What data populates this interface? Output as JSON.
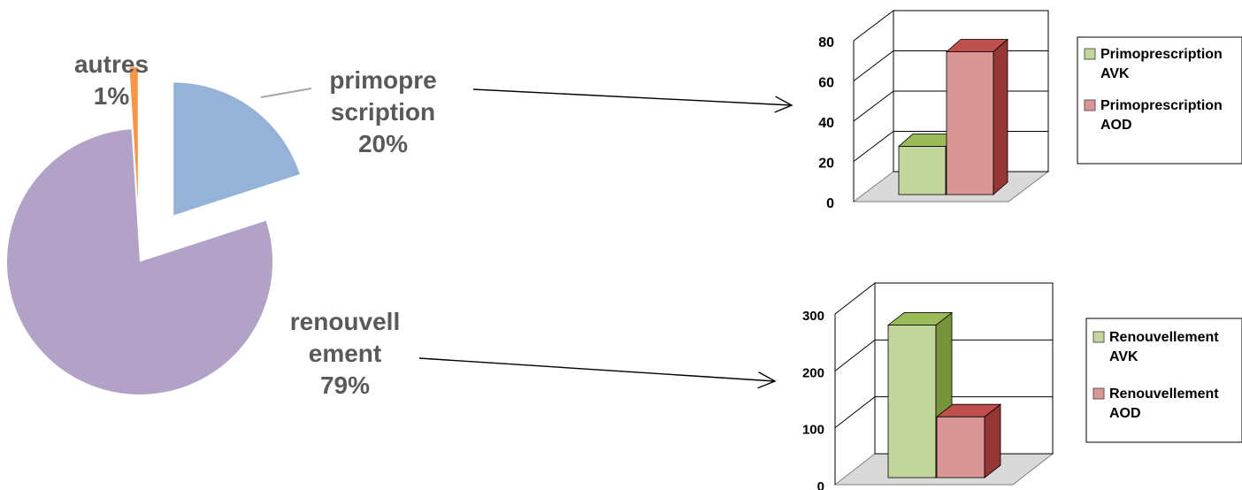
{
  "chart_data": [
    {
      "type": "pie",
      "title": "",
      "exploded": true,
      "slices": [
        {
          "label_lines": [
            "primopre",
            "scription"
          ],
          "pct_label": "20%",
          "value": 20,
          "color": "#95b3d7"
        },
        {
          "label_lines": [
            "renouvell",
            "ement"
          ],
          "pct_label": "79%",
          "value": 79,
          "color": "#b2a2c7"
        },
        {
          "label_lines": [
            "autres"
          ],
          "pct_label": "1%",
          "value": 1,
          "color": "#f79646"
        }
      ]
    },
    {
      "type": "bar",
      "style": "3d",
      "title": "",
      "ylim": [
        0,
        80
      ],
      "yticks": [
        "0",
        "20",
        "40",
        "60",
        "80"
      ],
      "grid": true,
      "legend_position": "right",
      "series": [
        {
          "name_lines": [
            "Primoprescription",
            "AVK"
          ],
          "value": 24,
          "color": "#c3d69b",
          "side": "#77933c",
          "top": "#9bbb59"
        },
        {
          "name_lines": [
            "Primoprescription",
            "AOD"
          ],
          "value": 71,
          "color": "#d99694",
          "side": "#953735",
          "top": "#c0504d"
        }
      ]
    },
    {
      "type": "bar",
      "style": "3d",
      "title": "",
      "ylim": [
        0,
        300
      ],
      "yticks": [
        "0",
        "100",
        "200",
        "300"
      ],
      "grid": true,
      "legend_position": "right",
      "series": [
        {
          "name_lines": [
            "Renouvellement",
            "AVK"
          ],
          "value": 268,
          "color": "#c3d69b",
          "side": "#77933c",
          "top": "#9bbb59"
        },
        {
          "name_lines": [
            "Renouvellement",
            "AOD"
          ],
          "value": 107,
          "color": "#d99694",
          "side": "#953735",
          "top": "#c0504d"
        }
      ]
    }
  ]
}
